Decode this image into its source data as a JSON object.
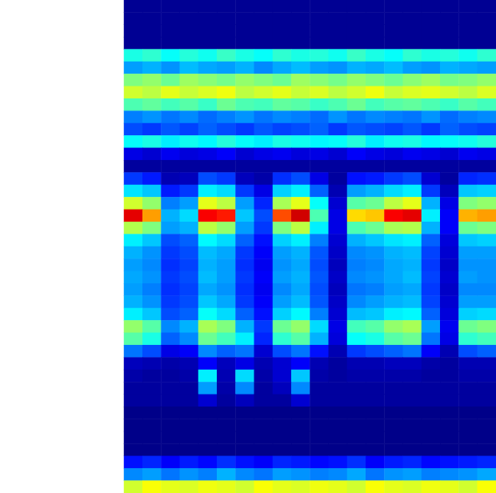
{
  "chart_data": {
    "type": "heatmap",
    "tick_labels": false,
    "grid": false,
    "zlim": [
      0,
      100
    ],
    "z": [
      [
        2,
        2,
        2,
        2,
        2,
        2,
        2,
        2,
        2,
        2,
        2,
        2,
        2,
        2,
        2,
        2,
        2,
        2,
        2,
        2
      ],
      [
        2,
        2,
        2,
        2,
        2,
        2,
        2,
        2,
        2,
        2,
        2,
        2,
        2,
        2,
        2,
        2,
        2,
        2,
        2,
        2
      ],
      [
        2,
        2,
        2,
        2,
        2,
        2,
        2,
        2,
        2,
        2,
        2,
        2,
        2,
        2,
        2,
        2,
        2,
        2,
        2,
        2
      ],
      [
        2,
        2,
        2,
        2,
        2,
        2,
        2,
        2,
        2,
        2,
        2,
        2,
        2,
        2,
        2,
        2,
        2,
        2,
        2,
        2
      ],
      [
        40,
        42,
        38,
        41,
        39,
        43,
        40,
        38,
        42,
        40,
        41,
        39,
        43,
        40,
        38,
        42,
        40,
        41,
        39,
        42
      ],
      [
        28,
        30,
        27,
        31,
        29,
        28,
        30,
        26,
        29,
        31,
        28,
        27,
        30,
        29,
        31,
        28,
        27,
        30,
        29,
        28
      ],
      [
        50,
        52,
        48,
        53,
        51,
        49,
        52,
        50,
        48,
        53,
        51,
        49,
        52,
        50,
        48,
        51,
        53,
        49,
        50,
        52
      ],
      [
        58,
        56,
        60,
        57,
        59,
        61,
        56,
        58,
        60,
        57,
        59,
        56,
        58,
        61,
        57,
        59,
        60,
        58,
        56,
        59
      ],
      [
        45,
        47,
        44,
        46,
        43,
        48,
        45,
        44,
        47,
        46,
        43,
        45,
        48,
        44,
        46,
        47,
        45,
        43,
        46,
        44
      ],
      [
        25,
        27,
        24,
        26,
        23,
        25,
        27,
        24,
        26,
        25,
        23,
        27,
        24,
        26,
        25,
        24,
        27,
        23,
        25,
        26
      ],
      [
        20,
        18,
        21,
        19,
        22,
        20,
        18,
        21,
        19,
        20,
        22,
        18,
        21,
        20,
        19,
        21,
        18,
        22,
        20,
        19
      ],
      [
        38,
        40,
        36,
        39,
        37,
        41,
        38,
        36,
        40,
        39,
        37,
        38,
        41,
        36,
        39,
        40,
        37,
        38,
        39,
        41
      ],
      [
        10,
        8,
        11,
        9,
        10,
        12,
        8,
        10,
        11,
        9,
        10,
        8,
        12,
        10,
        9,
        11,
        10,
        8,
        11,
        10
      ],
      [
        3,
        3,
        3,
        3,
        3,
        3,
        3,
        3,
        3,
        3,
        3,
        3,
        3,
        3,
        3,
        3,
        3,
        3,
        3,
        3
      ],
      [
        18,
        15,
        5,
        6,
        20,
        18,
        6,
        4,
        17,
        20,
        10,
        3,
        14,
        15,
        18,
        20,
        8,
        3,
        16,
        17
      ],
      [
        35,
        32,
        15,
        18,
        36,
        34,
        18,
        10,
        33,
        36,
        22,
        5,
        28,
        30,
        34,
        36,
        18,
        6,
        32,
        33
      ],
      [
        58,
        52,
        25,
        28,
        60,
        56,
        28,
        16,
        54,
        60,
        38,
        8,
        46,
        48,
        56,
        60,
        30,
        10,
        50,
        52
      ],
      [
        90,
        72,
        30,
        34,
        88,
        85,
        32,
        20,
        80,
        92,
        45,
        10,
        66,
        68,
        88,
        90,
        36,
        12,
        70,
        72
      ],
      [
        55,
        50,
        28,
        30,
        56,
        52,
        28,
        18,
        50,
        56,
        36,
        10,
        45,
        48,
        54,
        55,
        30,
        12,
        48,
        50
      ],
      [
        36,
        32,
        20,
        22,
        37,
        34,
        22,
        14,
        33,
        36,
        25,
        8,
        30,
        32,
        35,
        36,
        22,
        9,
        32,
        33
      ],
      [
        30,
        27,
        18,
        20,
        31,
        29,
        18,
        12,
        28,
        30,
        21,
        7,
        26,
        27,
        30,
        31,
        19,
        8,
        28,
        28
      ],
      [
        28,
        26,
        17,
        19,
        30,
        28,
        17,
        11,
        27,
        29,
        20,
        6,
        25,
        26,
        29,
        30,
        18,
        7,
        27,
        27
      ],
      [
        29,
        27,
        18,
        20,
        31,
        28,
        18,
        12,
        28,
        30,
        21,
        7,
        26,
        27,
        29,
        31,
        19,
        8,
        28,
        27
      ],
      [
        28,
        25,
        17,
        19,
        29,
        27,
        17,
        11,
        26,
        29,
        20,
        6,
        24,
        25,
        28,
        29,
        18,
        7,
        26,
        26
      ],
      [
        30,
        27,
        18,
        20,
        32,
        29,
        18,
        12,
        28,
        31,
        21,
        7,
        26,
        28,
        30,
        31,
        19,
        8,
        28,
        28
      ],
      [
        36,
        32,
        20,
        22,
        38,
        34,
        22,
        14,
        33,
        37,
        25,
        8,
        31,
        32,
        36,
        37,
        22,
        9,
        33,
        34
      ],
      [
        52,
        46,
        26,
        30,
        54,
        50,
        30,
        18,
        48,
        52,
        34,
        10,
        44,
        46,
        52,
        54,
        28,
        11,
        48,
        50
      ],
      [
        46,
        40,
        22,
        26,
        48,
        44,
        36,
        16,
        42,
        46,
        30,
        9,
        38,
        40,
        46,
        48,
        24,
        10,
        42,
        44
      ],
      [
        24,
        20,
        10,
        12,
        26,
        22,
        24,
        8,
        20,
        24,
        14,
        5,
        18,
        20,
        22,
        24,
        12,
        5,
        20,
        22
      ],
      [
        6,
        5,
        4,
        5,
        12,
        6,
        10,
        5,
        8,
        12,
        5,
        3,
        5,
        5,
        6,
        6,
        4,
        3,
        5,
        5
      ],
      [
        4,
        3,
        3,
        4,
        36,
        5,
        34,
        4,
        8,
        32,
        4,
        3,
        4,
        4,
        4,
        4,
        3,
        3,
        4,
        4
      ],
      [
        3,
        3,
        3,
        3,
        28,
        4,
        26,
        3,
        6,
        26,
        3,
        3,
        3,
        3,
        3,
        3,
        3,
        3,
        3,
        3
      ],
      [
        3,
        3,
        3,
        3,
        8,
        3,
        6,
        3,
        3,
        8,
        3,
        3,
        3,
        3,
        3,
        3,
        3,
        3,
        3,
        3
      ],
      [
        1,
        1,
        1,
        1,
        1,
        1,
        1,
        1,
        1,
        1,
        1,
        1,
        1,
        1,
        1,
        1,
        1,
        1,
        1,
        1
      ],
      [
        1,
        1,
        1,
        1,
        1,
        1,
        1,
        1,
        1,
        1,
        1,
        1,
        1,
        1,
        1,
        1,
        1,
        1,
        1,
        1
      ],
      [
        1,
        1,
        1,
        1,
        1,
        1,
        1,
        1,
        1,
        1,
        1,
        1,
        1,
        1,
        1,
        1,
        1,
        1,
        1,
        1
      ],
      [
        1,
        1,
        1,
        1,
        1,
        1,
        1,
        1,
        1,
        1,
        1,
        1,
        1,
        1,
        1,
        1,
        1,
        1,
        1,
        1
      ],
      [
        14,
        16,
        12,
        15,
        13,
        17,
        14,
        12,
        16,
        15,
        13,
        14,
        17,
        12,
        15,
        16,
        13,
        14,
        15,
        16
      ],
      [
        26,
        28,
        24,
        27,
        25,
        30,
        26,
        24,
        28,
        27,
        25,
        26,
        29,
        24,
        27,
        28,
        25,
        26,
        27,
        29
      ],
      [
        58,
        62,
        60,
        59,
        61,
        60,
        58,
        62,
        60,
        59,
        61,
        60,
        58,
        62,
        60,
        59,
        61,
        60,
        58,
        62
      ]
    ]
  }
}
